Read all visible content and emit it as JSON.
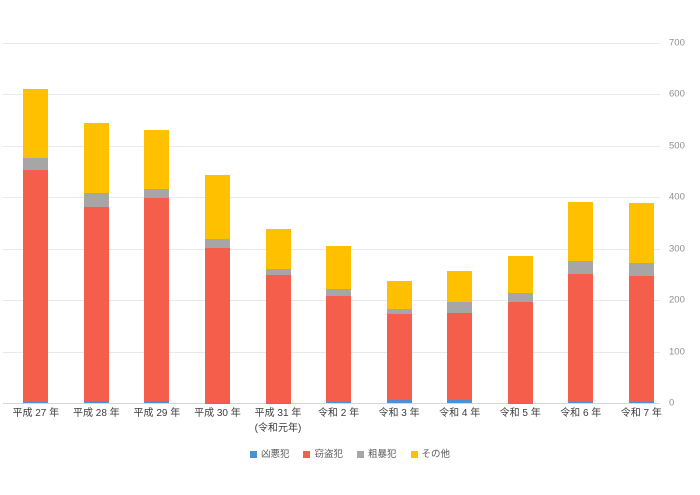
{
  "chart_data": {
    "type": "bar",
    "stacked": true,
    "title": "",
    "categories": [
      {
        "label": "平成 27 年",
        "sublabel": ""
      },
      {
        "label": "平成 28 年",
        "sublabel": ""
      },
      {
        "label": "平成 29 年",
        "sublabel": ""
      },
      {
        "label": "平成 30 年",
        "sublabel": ""
      },
      {
        "label": "平成 31 年",
        "sublabel": "(令和元年)"
      },
      {
        "label": "令和 2 年",
        "sublabel": ""
      },
      {
        "label": "令和 3 年",
        "sublabel": ""
      },
      {
        "label": "令和 4 年",
        "sublabel": ""
      },
      {
        "label": "令和 5 年",
        "sublabel": ""
      },
      {
        "label": "令和 6 年",
        "sublabel": ""
      },
      {
        "label": "令和 7 年",
        "sublabel": ""
      }
    ],
    "series": [
      {
        "name": "凶悪犯",
        "color": "#4a90d5",
        "values": [
          2,
          4,
          4,
          1,
          1,
          2,
          5,
          5,
          1,
          2,
          2
        ]
      },
      {
        "name": "窃盗犯",
        "color": "#f45e4a",
        "values": [
          452,
          378,
          394,
          301,
          248,
          207,
          169,
          171,
          196,
          248,
          245
        ]
      },
      {
        "name": "粗暴犯",
        "color": "#a6a6a6",
        "values": [
          23,
          26,
          19,
          16,
          12,
          13,
          9,
          20,
          16,
          26,
          26
        ]
      },
      {
        "name": "その他",
        "color": "#ffc000",
        "values": [
          133,
          137,
          113,
          126,
          77,
          84,
          55,
          60,
          73,
          114,
          115
        ]
      }
    ],
    "totals": [
      610,
      545,
      530,
      444,
      338,
      306,
      238,
      256,
      286,
      390,
      388
    ],
    "ylim": [
      0,
      700
    ],
    "yticks": [
      0,
      100,
      200,
      300,
      400,
      500,
      600,
      700
    ],
    "y_axis_side": "right",
    "xlabel": "",
    "ylabel": "",
    "grid": true,
    "legend_position": "bottom"
  },
  "colors": {
    "background": "#ffffff",
    "gridline": "#e9e9e9",
    "baseline": "#d6d6d6",
    "y_tick_text": "#8e8e8e",
    "x_tick_text": "#3d3d3d",
    "legend_text": "#595959"
  }
}
